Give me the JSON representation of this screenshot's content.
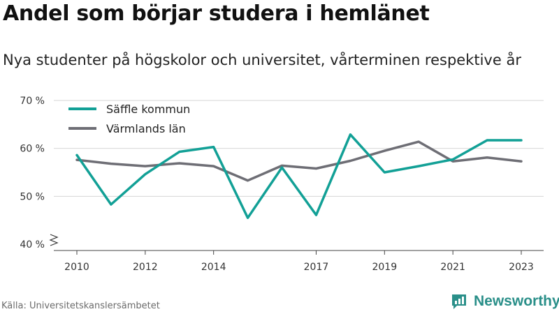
{
  "header": {
    "title": "Andel som börjar studera i hemlänet",
    "subtitle": "Nya studenter på högskolor och universitet, vårterminen respektive år"
  },
  "footer": {
    "source": "Källa: Universitetskanslersämbetet",
    "brand": "Newsworthy",
    "brand_icon": "newsworthy-logo-icon",
    "brand_color": "#2a8f89"
  },
  "chart_data": {
    "type": "line",
    "title": "Andel som börjar studera i hemlänet",
    "subtitle": "Nya studenter på högskolor och universitet, vårterminen respektive år",
    "x": [
      2010,
      2011,
      2012,
      2013,
      2014,
      2015,
      2016,
      2017,
      2018,
      2019,
      2020,
      2021,
      2022,
      2023
    ],
    "x_tick_labels": [
      "2010",
      "2012",
      "2014",
      "2017",
      "2019",
      "2021",
      "2023"
    ],
    "xlim": [
      2010,
      2023
    ],
    "ylim": [
      40,
      70
    ],
    "y_ticks": [
      40,
      50,
      60,
      70
    ],
    "y_tick_labels": [
      "40 %",
      "50 %",
      "60 %",
      "70 %"
    ],
    "y_axis_break": true,
    "grid": "horizontal",
    "legend_position": "top-left",
    "series": [
      {
        "name": "Säffle kommun",
        "color": "#12a096",
        "values": [
          58.6,
          48.3,
          54.6,
          59.3,
          60.3,
          45.5,
          56.0,
          46.1,
          62.9,
          55.0,
          56.3,
          57.7,
          61.7,
          61.7
        ]
      },
      {
        "name": "Värmlands län",
        "color": "#6e6e75",
        "values": [
          57.6,
          56.8,
          56.3,
          56.9,
          56.3,
          53.3,
          56.4,
          55.8,
          57.4,
          59.5,
          61.4,
          57.3,
          58.1,
          57.3
        ]
      }
    ]
  }
}
